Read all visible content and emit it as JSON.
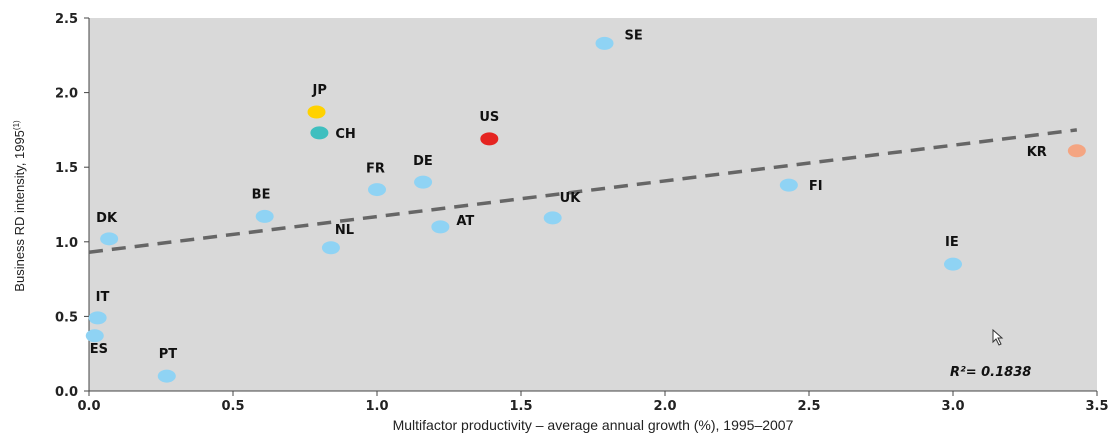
{
  "chart_data": {
    "type": "scatter",
    "title": "",
    "xlabel": "Multifactor productivity – average annual growth (%), 1995–2007",
    "ylabel": "Business RD intensity, 1995",
    "ylabel_sup": "(1)",
    "xlim": [
      0,
      3.5
    ],
    "ylim": [
      0,
      2.5
    ],
    "x_ticks": [
      "0.0",
      "0.5",
      "1.0",
      "1.5",
      "2.0",
      "2.5",
      "3.0",
      "3.5"
    ],
    "y_ticks": [
      "0.0",
      "0.5",
      "1.0",
      "1.5",
      "2.0",
      "2.5"
    ],
    "grid": false,
    "background": "#d9d9d9",
    "points": [
      {
        "label": "SE",
        "x": 1.79,
        "y": 2.33,
        "color": "#8fd3f4"
      },
      {
        "label": "JP",
        "x": 0.79,
        "y": 1.87,
        "color": "#ffd200"
      },
      {
        "label": "CH",
        "x": 0.8,
        "y": 1.73,
        "color": "#3fbfbf"
      },
      {
        "label": "US",
        "x": 1.39,
        "y": 1.69,
        "color": "#e52421"
      },
      {
        "label": "KR",
        "x": 3.43,
        "y": 1.61,
        "color": "#f4a582"
      },
      {
        "label": "DE",
        "x": 1.16,
        "y": 1.4,
        "color": "#8fd3f4"
      },
      {
        "label": "FI",
        "x": 2.43,
        "y": 1.38,
        "color": "#8fd3f4"
      },
      {
        "label": "FR",
        "x": 1.0,
        "y": 1.35,
        "color": "#8fd3f4"
      },
      {
        "label": "BE",
        "x": 0.61,
        "y": 1.17,
        "color": "#8fd3f4"
      },
      {
        "label": "UK",
        "x": 1.61,
        "y": 1.16,
        "color": "#8fd3f4"
      },
      {
        "label": "AT",
        "x": 1.22,
        "y": 1.1,
        "color": "#8fd3f4"
      },
      {
        "label": "DK",
        "x": 0.07,
        "y": 1.02,
        "color": "#8fd3f4"
      },
      {
        "label": "NL",
        "x": 0.84,
        "y": 0.96,
        "color": "#8fd3f4"
      },
      {
        "label": "IE",
        "x": 3.0,
        "y": 0.85,
        "color": "#8fd3f4"
      },
      {
        "label": "IT",
        "x": 0.03,
        "y": 0.49,
        "color": "#8fd3f4"
      },
      {
        "label": "ES",
        "x": 0.02,
        "y": 0.37,
        "color": "#8fd3f4"
      },
      {
        "label": "PT",
        "x": 0.27,
        "y": 0.1,
        "color": "#8fd3f4"
      }
    ],
    "trendline": {
      "x": [
        0,
        3.43
      ],
      "y": [
        0.93,
        1.75
      ],
      "color": "#666666",
      "style": "dashed"
    },
    "annotation": {
      "text": "R²= 0.1838"
    }
  }
}
